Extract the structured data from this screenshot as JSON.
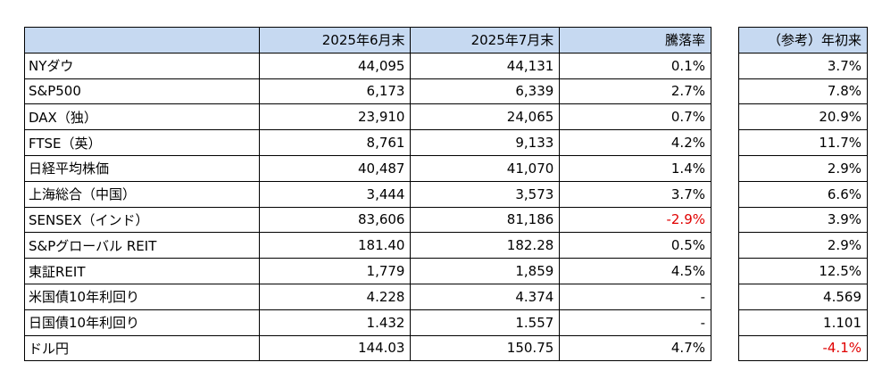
{
  "table": {
    "header": [
      "",
      "2025年6月末",
      "2025年7月末",
      "騰落率"
    ],
    "rows": [
      [
        "NYダウ",
        "44,095",
        "44,131",
        "0.1%"
      ],
      [
        "S&P500",
        "6,173",
        "6,339",
        "2.7%"
      ],
      [
        "DAX（独）",
        "23,910",
        "24,065",
        "0.7%"
      ],
      [
        "FTSE（英）",
        "8,761",
        "9,133",
        "4.2%"
      ],
      [
        "日経平均株価",
        "40,487",
        "41,070",
        "1.4%"
      ],
      [
        "上海総合（中国）",
        "3,444",
        "3,573",
        "3.7%"
      ],
      [
        "SENSEX（インド）",
        "83,606",
        "81,186",
        "-2.9%"
      ],
      [
        "S&Pグローバル REIT",
        "181.40",
        "182.28",
        "0.5%"
      ],
      [
        "東証REIT",
        "1,779",
        "1,859",
        "4.5%"
      ],
      [
        "米国債10年利回り",
        "4.228",
        "4.374",
        "-"
      ],
      [
        "日国債10年利回り",
        "1.432",
        "1.557",
        "-"
      ],
      [
        "ドル円",
        "144.03",
        "150.75",
        "4.7%"
      ]
    ]
  },
  "reference": {
    "header": "（参考）年初来",
    "rows": [
      "3.7%",
      "7.8%",
      "20.9%",
      "11.7%",
      "2.9%",
      "6.6%",
      "3.9%",
      "2.9%",
      "12.5%",
      "4.569",
      "1.101",
      "-4.1%"
    ]
  }
}
